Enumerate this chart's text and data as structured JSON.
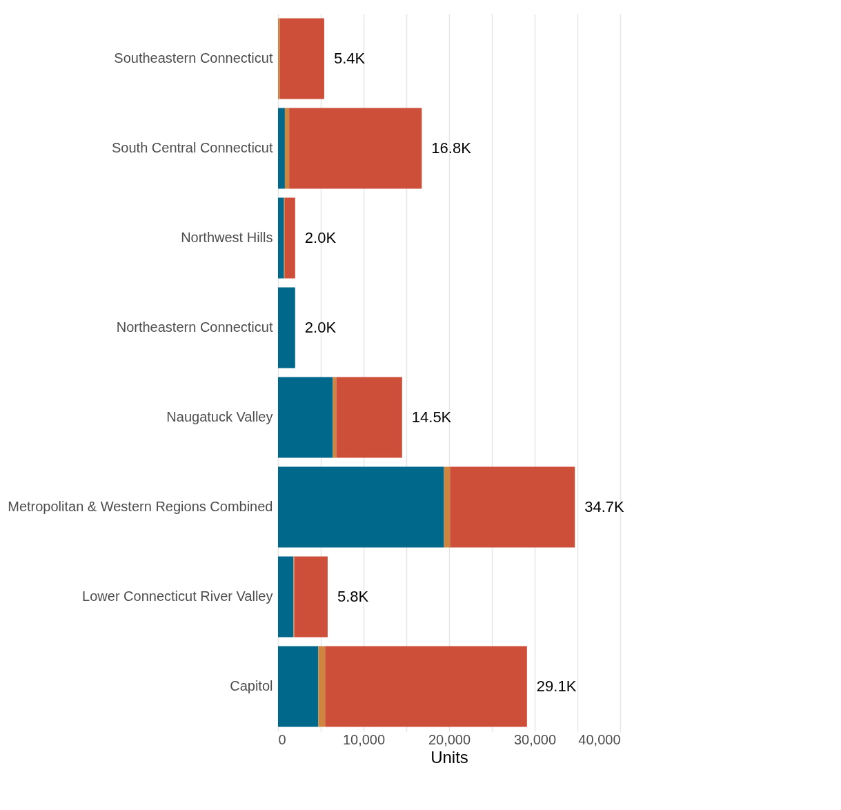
{
  "chart_data": {
    "type": "bar",
    "orientation": "horizontal",
    "stacked": true,
    "xlabel": "Units",
    "categories": [
      "Southeastern Connecticut",
      "South Central Connecticut",
      "Northwest Hills",
      "Northeastern Connecticut",
      "Naugatuck Valley",
      "Metropolitan & Western Regions Combined",
      "Lower Connecticut River Valley",
      "Capitol"
    ],
    "series": [
      {
        "color": "#00688b",
        "values": [
          0,
          800,
          700,
          2000,
          6400,
          19400,
          1800,
          4700
        ]
      },
      {
        "color": "#cd853f",
        "values": [
          200,
          500,
          100,
          0,
          400,
          700,
          100,
          800
        ]
      },
      {
        "color": "#cd4f39",
        "values": [
          5200,
          15500,
          1200,
          0,
          7700,
          14600,
          3900,
          23600
        ]
      }
    ],
    "totals": [
      "5.4K",
      "16.8K",
      "2.0K",
      "2.0K",
      "14.5K",
      "34.7K",
      "5.8K",
      "29.1K"
    ],
    "xlim": [
      0,
      40000
    ],
    "xticks": [
      {
        "value": 0,
        "label": "0"
      },
      {
        "value": 5000,
        "label": null
      },
      {
        "value": 10000,
        "label": "10,000"
      },
      {
        "value": 15000,
        "label": null
      },
      {
        "value": 20000,
        "label": "20,000"
      },
      {
        "value": 25000,
        "label": null
      },
      {
        "value": 30000,
        "label": "30,000"
      },
      {
        "value": 35000,
        "label": null
      },
      {
        "value": 40000,
        "label": "40,000"
      }
    ],
    "grid": "x",
    "legend": false
  }
}
